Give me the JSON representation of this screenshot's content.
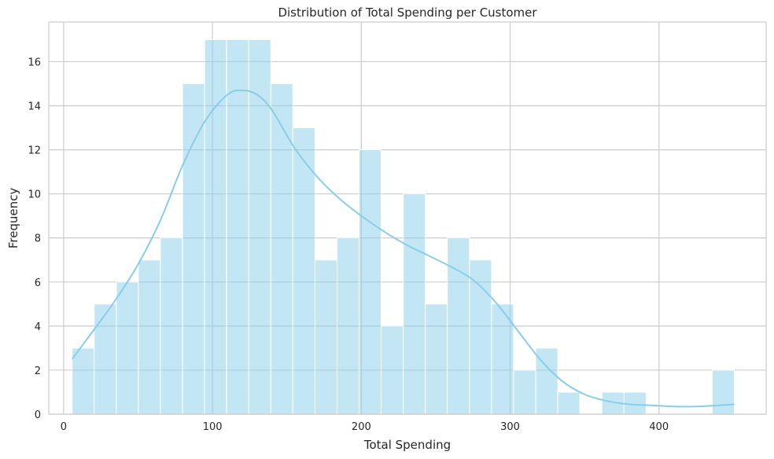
{
  "chart_data": {
    "type": "bar",
    "subtype": "histogram-with-kde",
    "title": "Distribution of Total Spending per Customer",
    "xlabel": "Total Spending",
    "ylabel": "Frequency",
    "xlim": [
      -10,
      472
    ],
    "ylim": [
      0,
      17.8
    ],
    "xticks": [
      0,
      100,
      200,
      300,
      400
    ],
    "yticks": [
      0,
      2,
      4,
      6,
      8,
      10,
      12,
      14,
      16
    ],
    "grid": true,
    "bar_color": "#87ceeb",
    "bar_opacity": 0.5,
    "kde_color": "#87ceeb",
    "bins": [
      {
        "x0": 5.7,
        "x1": 20.5,
        "count": 3
      },
      {
        "x0": 20.5,
        "x1": 35.4,
        "count": 5
      },
      {
        "x0": 35.4,
        "x1": 50.2,
        "count": 6
      },
      {
        "x0": 50.2,
        "x1": 65.0,
        "count": 7
      },
      {
        "x0": 65.0,
        "x1": 79.9,
        "count": 8
      },
      {
        "x0": 79.9,
        "x1": 94.7,
        "count": 15
      },
      {
        "x0": 94.7,
        "x1": 109.5,
        "count": 17
      },
      {
        "x0": 109.5,
        "x1": 124.4,
        "count": 17
      },
      {
        "x0": 124.4,
        "x1": 139.2,
        "count": 17
      },
      {
        "x0": 139.2,
        "x1": 154.0,
        "count": 15
      },
      {
        "x0": 154.0,
        "x1": 168.9,
        "count": 13
      },
      {
        "x0": 168.9,
        "x1": 183.7,
        "count": 7
      },
      {
        "x0": 183.7,
        "x1": 198.5,
        "count": 8
      },
      {
        "x0": 198.5,
        "x1": 213.3,
        "count": 12
      },
      {
        "x0": 213.3,
        "x1": 228.2,
        "count": 4
      },
      {
        "x0": 228.2,
        "x1": 243.0,
        "count": 10
      },
      {
        "x0": 243.0,
        "x1": 257.8,
        "count": 5
      },
      {
        "x0": 257.8,
        "x1": 272.7,
        "count": 8
      },
      {
        "x0": 272.7,
        "x1": 287.5,
        "count": 7
      },
      {
        "x0": 287.5,
        "x1": 302.3,
        "count": 5
      },
      {
        "x0": 302.3,
        "x1": 317.2,
        "count": 2
      },
      {
        "x0": 317.2,
        "x1": 332.0,
        "count": 3
      },
      {
        "x0": 332.0,
        "x1": 346.8,
        "count": 1
      },
      {
        "x0": 346.8,
        "x1": 361.7,
        "count": 0
      },
      {
        "x0": 361.7,
        "x1": 376.5,
        "count": 1
      },
      {
        "x0": 376.5,
        "x1": 391.3,
        "count": 1
      },
      {
        "x0": 391.3,
        "x1": 406.1,
        "count": 0
      },
      {
        "x0": 406.1,
        "x1": 421.0,
        "count": 0
      },
      {
        "x0": 421.0,
        "x1": 435.8,
        "count": 0
      },
      {
        "x0": 435.8,
        "x1": 450.6,
        "count": 2
      }
    ],
    "kde": {
      "x": [
        5.7,
        20,
        35,
        50,
        65,
        80,
        95,
        110,
        120,
        130,
        140,
        155,
        170,
        185,
        200,
        215,
        230,
        245,
        260,
        275,
        290,
        305,
        320,
        335,
        350,
        365,
        380,
        395,
        410,
        425,
        440,
        450.6
      ],
      "y": [
        2.5,
        3.8,
        5.2,
        6.8,
        8.8,
        11.3,
        13.3,
        14.5,
        14.7,
        14.5,
        13.8,
        12.1,
        10.8,
        9.8,
        9.0,
        8.3,
        7.7,
        7.2,
        6.7,
        6.1,
        5.1,
        3.8,
        2.5,
        1.5,
        0.9,
        0.6,
        0.45,
        0.4,
        0.35,
        0.35,
        0.4,
        0.45
      ]
    }
  }
}
